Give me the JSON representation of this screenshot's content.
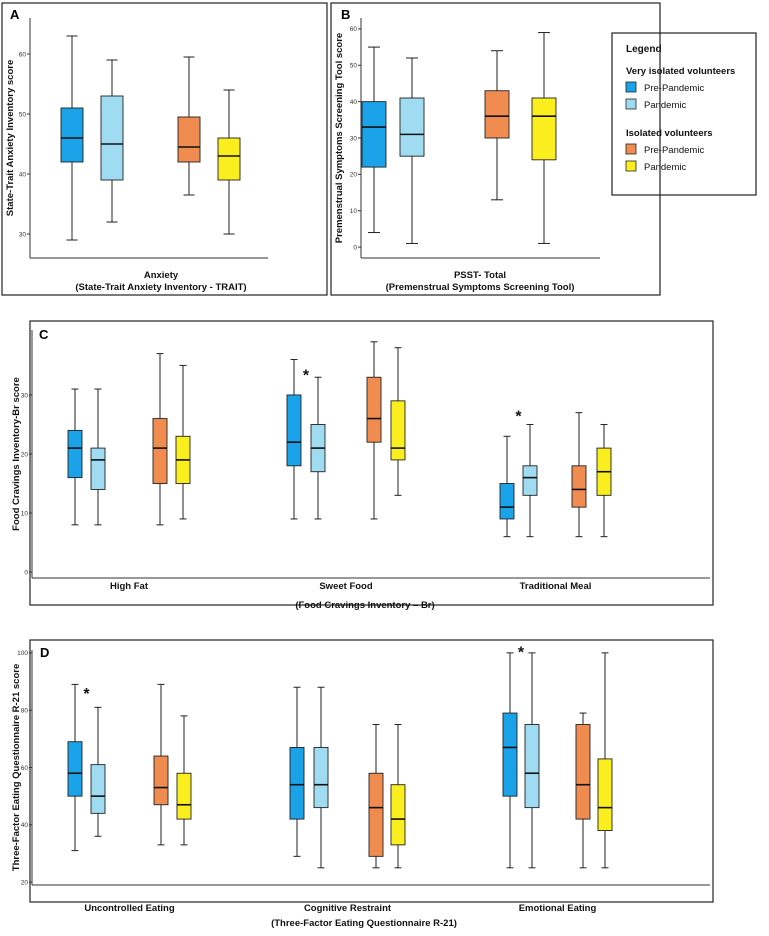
{
  "colors": {
    "very_pre": "#1aa3e8",
    "very_pan": "#9fdcf2",
    "iso_pre": "#f08c50",
    "iso_pan": "#fbee1e"
  },
  "legend": {
    "title": "Legend",
    "groups": [
      {
        "name": "Very isolated volunteers",
        "items": [
          {
            "label": "Pre-Pandemic",
            "color_key": "very_pre"
          },
          {
            "label": "Pandemic",
            "color_key": "very_pan"
          }
        ]
      },
      {
        "name": "Isolated volunteers",
        "items": [
          {
            "label": "Pre-Pandemic",
            "color_key": "iso_pre"
          },
          {
            "label": "Pandemic",
            "color_key": "iso_pan"
          }
        ]
      }
    ]
  },
  "chart_data": [
    {
      "panel": "A",
      "type": "boxplot",
      "ylabel": "State-Trait Anxiety Inventory score",
      "xlabel_lines": [
        "Anxiety",
        "(State-Trait Anxiety Inventory - TRAIT)"
      ],
      "yticks": [
        30,
        40,
        50,
        60
      ],
      "ylim": [
        26,
        66
      ],
      "categories": [
        {
          "label": "",
          "boxes": [
            {
              "color_key": "very_pre",
              "min": 29,
              "q1": 42,
              "median": 46,
              "q3": 51,
              "max": 63
            },
            {
              "color_key": "very_pan",
              "min": 32,
              "q1": 39,
              "median": 45,
              "q3": 53,
              "max": 59
            },
            {
              "color_key": "iso_pre",
              "min": 36.5,
              "q1": 42,
              "median": 44.5,
              "q3": 49.5,
              "max": 59.5
            },
            {
              "color_key": "iso_pan",
              "min": 30,
              "q1": 39,
              "median": 43,
              "q3": 46,
              "max": 54
            }
          ]
        }
      ],
      "annotations": []
    },
    {
      "panel": "B",
      "type": "boxplot",
      "ylabel": "Premenstrual Symptoms Screening Tool score",
      "xlabel_lines": [
        "PSST- Total",
        "(Premenstrual Symptoms Screening Tool)"
      ],
      "yticks": [
        0,
        10,
        20,
        30,
        40,
        50,
        60
      ],
      "ylim": [
        -3,
        63
      ],
      "categories": [
        {
          "label": "",
          "boxes": [
            {
              "color_key": "very_pre",
              "min": 4,
              "q1": 22,
              "median": 33,
              "q3": 40,
              "max": 55
            },
            {
              "color_key": "very_pan",
              "min": 1,
              "q1": 25,
              "median": 31,
              "q3": 41,
              "max": 52
            },
            {
              "color_key": "iso_pre",
              "min": 13,
              "q1": 30,
              "median": 36,
              "q3": 43,
              "max": 54
            },
            {
              "color_key": "iso_pan",
              "min": 1,
              "q1": 24,
              "median": 36,
              "q3": 41,
              "max": 59
            }
          ]
        }
      ],
      "annotations": []
    },
    {
      "panel": "C",
      "type": "boxplot",
      "ylabel": "Food Cravings Inventory-Br score",
      "xlabel_lines": [
        "(Food Cravings Inventory – Br)"
      ],
      "yticks": [
        0,
        10,
        20,
        30
      ],
      "ylim": [
        -1,
        41
      ],
      "categories": [
        {
          "label": "High Fat",
          "boxes": [
            {
              "color_key": "very_pre",
              "min": 8,
              "q1": 16,
              "median": 21,
              "q3": 24,
              "max": 31
            },
            {
              "color_key": "very_pan",
              "min": 8,
              "q1": 14,
              "median": 19,
              "q3": 21,
              "max": 31
            },
            {
              "color_key": "iso_pre",
              "min": 8,
              "q1": 15,
              "median": 21,
              "q3": 26,
              "max": 37
            },
            {
              "color_key": "iso_pan",
              "min": 9,
              "q1": 15,
              "median": 19,
              "q3": 23,
              "max": 35
            }
          ]
        },
        {
          "label": "Sweet Food",
          "boxes": [
            {
              "color_key": "very_pre",
              "min": 9,
              "q1": 18,
              "median": 22,
              "q3": 30,
              "max": 36
            },
            {
              "color_key": "very_pan",
              "min": 9,
              "q1": 17,
              "median": 21,
              "q3": 25,
              "max": 33
            },
            {
              "color_key": "iso_pre",
              "min": 9,
              "q1": 22,
              "median": 26,
              "q3": 33,
              "max": 39
            },
            {
              "color_key": "iso_pan",
              "min": 13,
              "q1": 19,
              "median": 21,
              "q3": 29,
              "max": 38
            }
          ]
        },
        {
          "label": "Traditional Meal",
          "boxes": [
            {
              "color_key": "very_pre",
              "min": 6,
              "q1": 9,
              "median": 11,
              "q3": 15,
              "max": 23
            },
            {
              "color_key": "very_pan",
              "min": 6,
              "q1": 13,
              "median": 16,
              "q3": 18,
              "max": 25
            },
            {
              "color_key": "iso_pre",
              "min": 6,
              "q1": 11,
              "median": 14,
              "q3": 18,
              "max": 27
            },
            {
              "color_key": "iso_pan",
              "min": 6,
              "q1": 13,
              "median": 17,
              "q3": 21,
              "max": 25
            }
          ]
        }
      ],
      "annotations": [
        {
          "text": "*",
          "category": 1,
          "box": 0.5,
          "y": 33.5
        },
        {
          "text": "*",
          "category": 2,
          "box": 0.5,
          "y": 26.5
        }
      ]
    },
    {
      "panel": "D",
      "type": "boxplot",
      "ylabel": "Three-Factor Eating Questionnaire R-21 score",
      "xlabel_lines": [
        "(Three-Factor Eating Questionnaire R-21)"
      ],
      "yticks": [
        20,
        40,
        60,
        80,
        100
      ],
      "ylim": [
        19,
        101
      ],
      "categories": [
        {
          "label": "Uncontrolled Eating",
          "boxes": [
            {
              "color_key": "very_pre",
              "min": 31,
              "q1": 50,
              "median": 58,
              "q3": 69,
              "max": 89
            },
            {
              "color_key": "very_pan",
              "min": 36,
              "q1": 44,
              "median": 50,
              "q3": 61,
              "max": 81
            },
            {
              "color_key": "iso_pre",
              "min": 33,
              "q1": 47,
              "median": 53,
              "q3": 64,
              "max": 89
            },
            {
              "color_key": "iso_pan",
              "min": 33,
              "q1": 42,
              "median": 47,
              "q3": 58,
              "max": 78
            }
          ]
        },
        {
          "label": "Cognitive Restraint",
          "boxes": [
            {
              "color_key": "very_pre",
              "min": 29,
              "q1": 42,
              "median": 54,
              "q3": 67,
              "max": 88
            },
            {
              "color_key": "very_pan",
              "min": 25,
              "q1": 46,
              "median": 54,
              "q3": 67,
              "max": 88
            },
            {
              "color_key": "iso_pre",
              "min": 25,
              "q1": 29,
              "median": 46,
              "q3": 58,
              "max": 75
            },
            {
              "color_key": "iso_pan",
              "min": 25,
              "q1": 33,
              "median": 42,
              "q3": 54,
              "max": 75
            }
          ]
        },
        {
          "label": "Emotional Eating",
          "boxes": [
            {
              "color_key": "very_pre",
              "min": 25,
              "q1": 50,
              "median": 67,
              "q3": 79,
              "max": 100
            },
            {
              "color_key": "very_pan",
              "min": 25,
              "q1": 46,
              "median": 58,
              "q3": 75,
              "max": 100
            },
            {
              "color_key": "iso_pre",
              "min": 25,
              "q1": 42,
              "median": 54,
              "q3": 75,
              "max": 79
            },
            {
              "color_key": "iso_pan",
              "min": 25,
              "q1": 38,
              "median": 46,
              "q3": 63,
              "max": 100
            }
          ]
        }
      ],
      "annotations": [
        {
          "text": "*",
          "category": 0,
          "box": 0.5,
          "y": 86
        },
        {
          "text": "*",
          "category": 2,
          "box": 0.5,
          "y": 100.5
        }
      ]
    }
  ]
}
